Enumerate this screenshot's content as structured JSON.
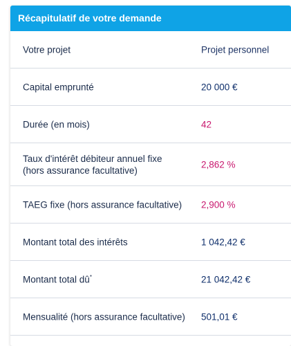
{
  "header": {
    "title": "Récapitulatif de votre demande"
  },
  "rows": [
    {
      "label": "Votre projet",
      "value": "Projet personnel"
    },
    {
      "label": "Capital emprunté",
      "value": "20 000 €"
    },
    {
      "label": "Durée (en mois)",
      "value": "42"
    },
    {
      "label": "Taux d'intérêt débiteur annuel fixe (hors assurance facultative)",
      "value": "2,862 %"
    },
    {
      "label": "TAEG fixe (hors assurance facultative)",
      "value": "2,900 %"
    },
    {
      "label": "Montant total des intérêts",
      "value": "1 042,42 €"
    },
    {
      "label": "Montant total dû",
      "label_note": "*",
      "value": "21 042,42 €"
    },
    {
      "label": "Mensualité (hors assurance facultative)",
      "value": "501,01 €"
    }
  ],
  "colors": {
    "header_bg": "#0fa3e6",
    "label_text": "#1a2b4a",
    "highlight_value": "#c8176e",
    "value_text": "#0f2f6b",
    "divider": "#d6dbe3"
  }
}
